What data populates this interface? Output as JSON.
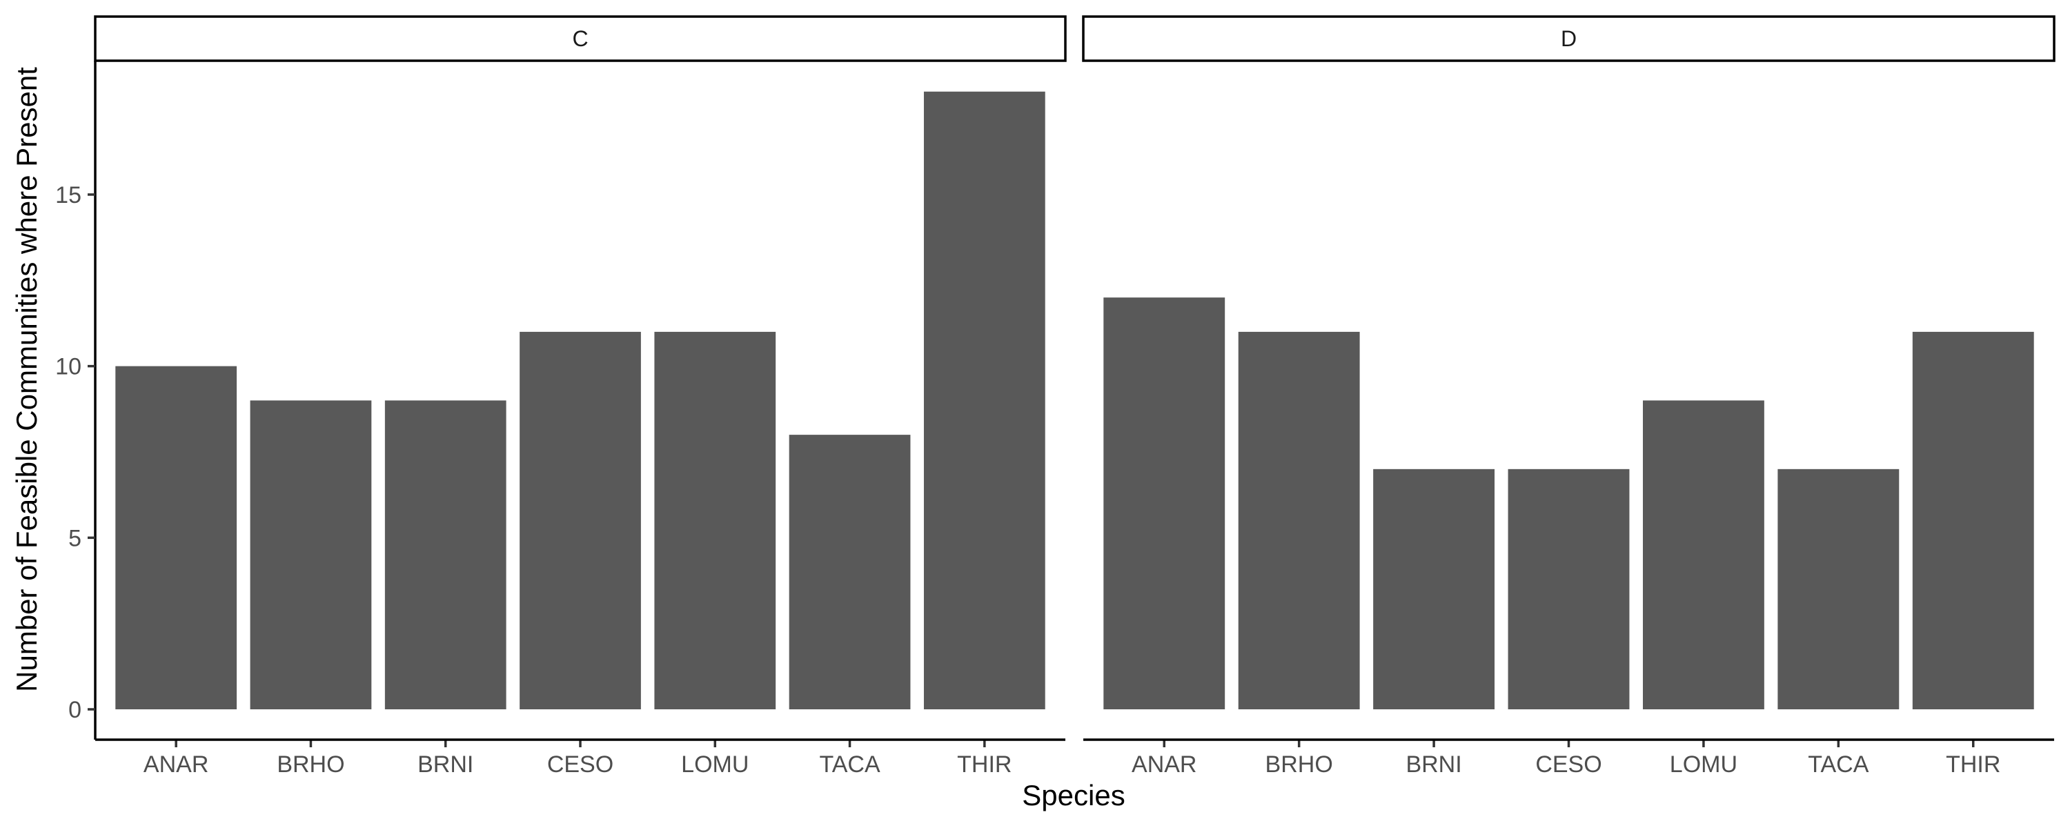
{
  "chart_data": {
    "type": "bar",
    "facet_by": "panel",
    "xlabel": "Species",
    "ylabel": "Number of Feasible Communities where Present",
    "ylim": [
      0,
      18.9
    ],
    "yticks": [
      0,
      5,
      10,
      15
    ],
    "categories": [
      "ANAR",
      "BRHO",
      "BRNI",
      "CESO",
      "LOMU",
      "TACA",
      "THIR"
    ],
    "bar_color": "#595959",
    "grid": false,
    "panels": [
      {
        "label": "C",
        "values": [
          10,
          9,
          9,
          11,
          11,
          8,
          18
        ]
      },
      {
        "label": "D",
        "values": [
          12,
          11,
          7,
          7,
          9,
          7,
          11
        ]
      }
    ]
  }
}
